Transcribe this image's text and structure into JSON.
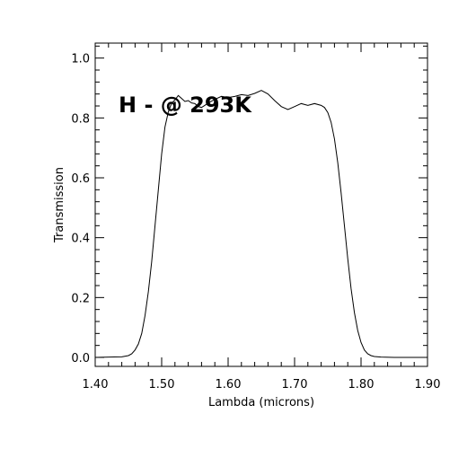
{
  "chart_data": {
    "type": "line",
    "title": "",
    "annotation": "H - @ 293K",
    "xlabel": "Lambda (microns)",
    "ylabel": "Transmission",
    "xlim": [
      1.4,
      1.9
    ],
    "ylim": [
      -0.03,
      1.05
    ],
    "x_ticks": [
      {
        "value": 1.4,
        "label": "1.40"
      },
      {
        "value": 1.5,
        "label": "1.50"
      },
      {
        "value": 1.6,
        "label": "1.60"
      },
      {
        "value": 1.7,
        "label": "1.70"
      },
      {
        "value": 1.8,
        "label": "1.80"
      },
      {
        "value": 1.9,
        "label": "1.90"
      }
    ],
    "y_ticks": [
      {
        "value": 0.0,
        "label": "0.0"
      },
      {
        "value": 0.2,
        "label": "0.2"
      },
      {
        "value": 0.4,
        "label": "0.4"
      },
      {
        "value": 0.6,
        "label": "0.6"
      },
      {
        "value": 0.8,
        "label": "0.8"
      },
      {
        "value": 1.0,
        "label": "1.0"
      }
    ],
    "grid": false,
    "series": [
      {
        "color": "#000000",
        "x": [
          1.4,
          1.44,
          1.45,
          1.455,
          1.46,
          1.465,
          1.47,
          1.475,
          1.48,
          1.485,
          1.49,
          1.495,
          1.5,
          1.505,
          1.51,
          1.515,
          1.52,
          1.525,
          1.53,
          1.535,
          1.54,
          1.545,
          1.55,
          1.555,
          1.56,
          1.565,
          1.57,
          1.58,
          1.59,
          1.6,
          1.61,
          1.62,
          1.63,
          1.64,
          1.65,
          1.66,
          1.67,
          1.68,
          1.69,
          1.7,
          1.71,
          1.72,
          1.73,
          1.74,
          1.745,
          1.75,
          1.755,
          1.76,
          1.765,
          1.77,
          1.775,
          1.78,
          1.785,
          1.79,
          1.795,
          1.8,
          1.805,
          1.81,
          1.815,
          1.82,
          1.83,
          1.85,
          1.9
        ],
        "y": [
          0.0,
          0.002,
          0.006,
          0.012,
          0.025,
          0.045,
          0.08,
          0.14,
          0.22,
          0.32,
          0.44,
          0.56,
          0.68,
          0.77,
          0.82,
          0.85,
          0.86,
          0.875,
          0.865,
          0.855,
          0.858,
          0.85,
          0.848,
          0.838,
          0.835,
          0.842,
          0.85,
          0.862,
          0.872,
          0.868,
          0.872,
          0.878,
          0.875,
          0.882,
          0.892,
          0.88,
          0.858,
          0.838,
          0.828,
          0.838,
          0.848,
          0.842,
          0.848,
          0.842,
          0.835,
          0.818,
          0.785,
          0.73,
          0.65,
          0.55,
          0.44,
          0.33,
          0.23,
          0.15,
          0.09,
          0.05,
          0.025,
          0.012,
          0.006,
          0.003,
          0.001,
          0.0,
          0.0
        ]
      }
    ]
  }
}
